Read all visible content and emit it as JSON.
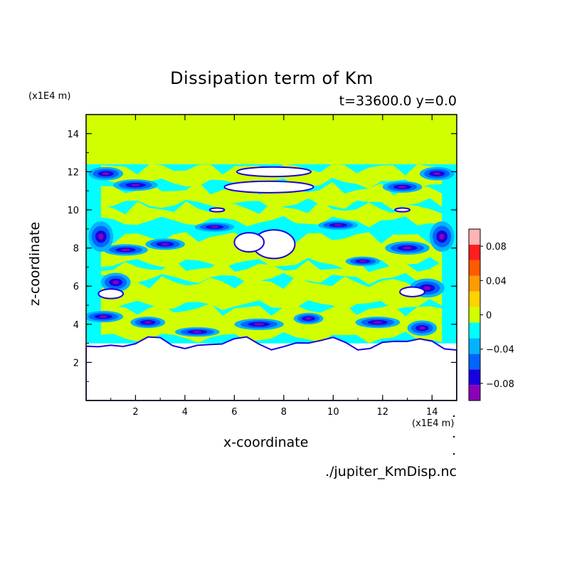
{
  "chart_data": {
    "type": "heatmap",
    "title": "Dissipation term of Km",
    "subtitle": "t=33600.0 y=0.0",
    "xlabel": "x-coordinate",
    "ylabel": "z-coordinate",
    "x_unit": "(x1E4 m)",
    "y_unit": "(x1E4 m)",
    "xlim": [
      0,
      15
    ],
    "ylim": [
      0,
      15
    ],
    "x_ticks": [
      2,
      4,
      6,
      8,
      10,
      12,
      14
    ],
    "y_ticks": [
      2,
      4,
      6,
      8,
      10,
      12,
      14
    ],
    "colorbar": {
      "levels": [
        -0.1,
        -0.08,
        -0.06,
        -0.04,
        -0.02,
        0,
        0.02,
        0.04,
        0.06,
        0.08,
        0.1
      ],
      "tick_values": [
        0.08,
        0.04,
        0,
        -0.04,
        -0.08
      ],
      "tick_labels": [
        "0.08",
        "0.04",
        "0",
        "−0.04",
        "−0.08"
      ],
      "colors": [
        "#8b00b8",
        "#1a00e0",
        "#0064ff",
        "#00b4ff",
        "#00ffff",
        "#d2ff00",
        "#ffd200",
        "#ff9a00",
        "#ff5a00",
        "#ff1e1e",
        "#ffb4b4"
      ]
    },
    "regions": {
      "top_band": {
        "z_range": [
          12.4,
          15
        ],
        "level": "0 to 0.02"
      },
      "mixed_layer": {
        "z_range": [
          3,
          12.4
        ],
        "levels": "−0.1 to 0.02"
      },
      "bottom_white": {
        "z_range": [
          0,
          3
        ],
        "value": "below −0.1 / undefined"
      }
    },
    "source_file": "./jupiter_KmDisp.nc"
  }
}
